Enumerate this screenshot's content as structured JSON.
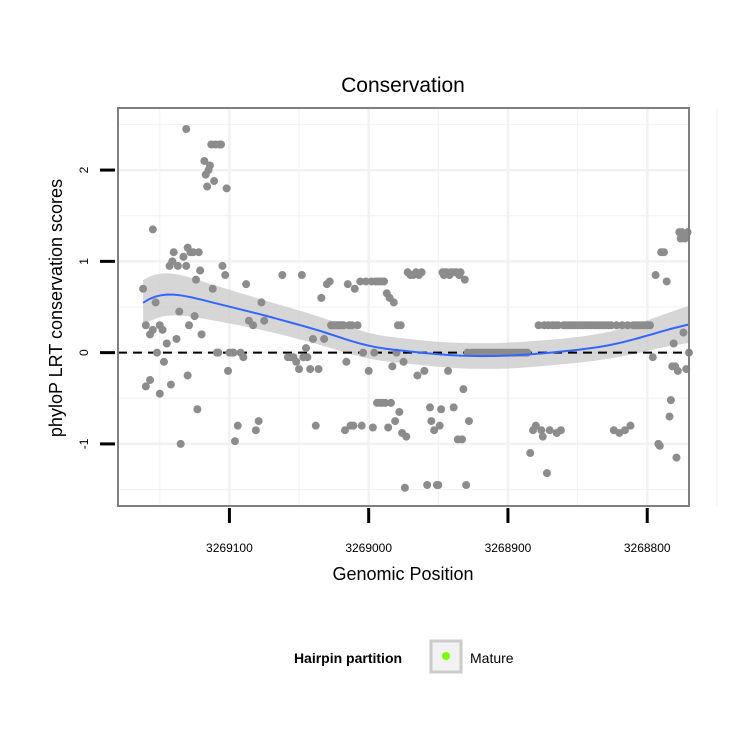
{
  "chart_data": {
    "type": "scatter",
    "title": "Conservation",
    "xlabel": "Genomic Position",
    "ylabel": "phyloP LRT conservation scores",
    "x_reversed": true,
    "xlim": [
      3269180,
      3268770
    ],
    "ylim": [
      -1.68,
      2.68
    ],
    "x_ticks": [
      3269100,
      3269000,
      3268900,
      3268800
    ],
    "x_tick_labels": [
      "3269100",
      "3269000",
      "3268900",
      "3268800"
    ],
    "y_ticks": [
      -1,
      0,
      1,
      2
    ],
    "y_tick_labels": [
      "-1",
      "0",
      "1",
      "2"
    ],
    "grid": true,
    "reference_line": {
      "y": 0,
      "style": "dashed"
    },
    "legend": {
      "title": "Hairpin partition",
      "position": "bottom",
      "entries": [
        {
          "label": "Mature",
          "color": "#7cfc00"
        }
      ]
    },
    "colors": {
      "points": "#8c8c8c",
      "mature": "#7cfc00",
      "smooth": "#3366ff",
      "band": "#c8c8c8",
      "panel_border": "#7f7f7f",
      "grid": "#f2f2f2"
    },
    "series": [
      {
        "values": [
          [
            3269162,
            0.7
          ],
          [
            3269160,
            0.3
          ],
          [
            3269160,
            -0.37
          ],
          [
            3269157,
            0.2
          ],
          [
            3269157,
            -0.3
          ],
          [
            3269155,
            0.25
          ],
          [
            3269155,
            1.35
          ],
          [
            3269153,
            0.55
          ],
          [
            3269152,
            0.0
          ],
          [
            3269150,
            -0.45
          ],
          [
            3269150,
            0.3
          ],
          [
            3269148,
            0.25
          ],
          [
            3269147,
            -0.1
          ],
          [
            3269145,
            0.1
          ],
          [
            3269143,
            0.95
          ],
          [
            3269142,
            -0.35
          ],
          [
            3269141,
            1.0
          ],
          [
            3269140,
            1.1
          ],
          [
            3269138,
            0.15
          ],
          [
            3269137,
            0.95
          ],
          [
            3269136,
            0.45
          ],
          [
            3269135,
            -1.0
          ],
          [
            3269133,
            1.05
          ],
          [
            3269131,
            2.45
          ],
          [
            3269131,
            0.95
          ],
          [
            3269130,
            1.15
          ],
          [
            3269130,
            -0.25
          ],
          [
            3269129,
            0.3
          ],
          [
            3269128,
            1.1
          ],
          [
            3269126,
            1.1
          ],
          [
            3269125,
            0.4
          ],
          [
            3269124,
            0.8
          ],
          [
            3269123,
            -0.62
          ],
          [
            3269122,
            1.1
          ],
          [
            3269121,
            0.9
          ],
          [
            3269120,
            0.2
          ],
          [
            3269118,
            2.1
          ],
          [
            3269117,
            1.95
          ],
          [
            3269116,
            1.82
          ],
          [
            3269115,
            2.0
          ],
          [
            3269114,
            2.05
          ],
          [
            3269113,
            2.28
          ],
          [
            3269112,
            0.7
          ],
          [
            3269111,
            1.88
          ],
          [
            3269110,
            2.28
          ],
          [
            3269109,
            0.0
          ],
          [
            3269108,
            0.0
          ],
          [
            3269107,
            2.28
          ],
          [
            3269106,
            2.28
          ],
          [
            3269105,
            0.95
          ],
          [
            3269103,
            0.85
          ],
          [
            3269102,
            1.8
          ],
          [
            3269101,
            -0.2
          ],
          [
            3269100,
            0.0
          ],
          [
            3269098,
            0.0
          ],
          [
            3269097,
            0.0
          ],
          [
            3269096,
            -0.97
          ],
          [
            3269094,
            -0.8
          ],
          [
            3269092,
            0.0
          ],
          [
            3269090,
            -0.05
          ],
          [
            3269088,
            0.75
          ],
          [
            3269086,
            0.35
          ],
          [
            3269083,
            0.3
          ],
          [
            3269081,
            -0.85
          ],
          [
            3269079,
            -0.75
          ],
          [
            3269077,
            0.55
          ],
          [
            3269075,
            0.35
          ],
          [
            3269062,
            0.85
          ],
          [
            3269058,
            -0.05
          ],
          [
            3269056,
            -0.05
          ],
          [
            3269054,
            -0.05
          ],
          [
            3269052,
            -0.1
          ],
          [
            3269050,
            -0.18
          ],
          [
            3269048,
            0.85
          ],
          [
            3269047,
            -0.05
          ],
          [
            3269045,
            0.05
          ],
          [
            3269044,
            -0.05
          ],
          [
            3269042,
            -0.18
          ],
          [
            3269040,
            0.15
          ],
          [
            3269038,
            -0.8
          ],
          [
            3269036,
            -0.18
          ],
          [
            3269034,
            0.6
          ],
          [
            3269032,
            0.15
          ],
          [
            3269030,
            0.75
          ],
          [
            3269028,
            0.78
          ],
          [
            3269027,
            0.3
          ],
          [
            3269026,
            0.3
          ],
          [
            3269025,
            0.3
          ],
          [
            3269024,
            0.3
          ],
          [
            3269023,
            0.3
          ],
          [
            3269022,
            0.3
          ],
          [
            3269021,
            0.3
          ],
          [
            3269020,
            0.3
          ],
          [
            3269019,
            0.3
          ],
          [
            3269018,
            0.3
          ],
          [
            3269017,
            -0.85
          ],
          [
            3269016,
            -0.1
          ],
          [
            3269015,
            0.75
          ],
          [
            3269014,
            0.3
          ],
          [
            3269013,
            -0.8
          ],
          [
            3269012,
            0.3
          ],
          [
            3269011,
            -0.8
          ],
          [
            3269010,
            0.7
          ],
          [
            3269008,
            0.3
          ],
          [
            3269006,
            0.78
          ],
          [
            3269005,
            -0.8
          ],
          [
            3269004,
            0.0
          ],
          [
            3269002,
            0.78
          ],
          [
            3269000,
            -0.2
          ],
          [
            3268998,
            0.78
          ],
          [
            3268997,
            -0.82
          ],
          [
            3268996,
            0.0
          ],
          [
            3268995,
            0.78
          ],
          [
            3268994,
            -0.55
          ],
          [
            3268993,
            0.78
          ],
          [
            3268992,
            -0.55
          ],
          [
            3268991,
            0.78
          ],
          [
            3268990,
            -0.55
          ],
          [
            3268989,
            0.78
          ],
          [
            3268988,
            -0.55
          ],
          [
            3268987,
            0.65
          ],
          [
            3268986,
            -0.82
          ],
          [
            3268985,
            0.6
          ],
          [
            3268984,
            -0.55
          ],
          [
            3268983,
            -0.15
          ],
          [
            3268982,
            0.55
          ],
          [
            3268981,
            -0.75
          ],
          [
            3268980,
            0.0
          ],
          [
            3268979,
            0.3
          ],
          [
            3268978,
            -0.65
          ],
          [
            3268977,
            0.3
          ],
          [
            3268976,
            -0.88
          ],
          [
            3268975,
            -0.1
          ],
          [
            3268974,
            -1.48
          ],
          [
            3268973,
            -0.92
          ],
          [
            3268972,
            0.88
          ],
          [
            3268970,
            0.85
          ],
          [
            3268968,
            0.85
          ],
          [
            3268966,
            0.88
          ],
          [
            3268965,
            -0.25
          ],
          [
            3268964,
            0.85
          ],
          [
            3268962,
            0.88
          ],
          [
            3268960,
            -0.2
          ],
          [
            3268958,
            -1.45
          ],
          [
            3268956,
            -0.6
          ],
          [
            3268955,
            -0.75
          ],
          [
            3268953,
            -0.85
          ],
          [
            3268951,
            -1.45
          ],
          [
            3268950,
            -1.45
          ],
          [
            3268949,
            -0.8
          ],
          [
            3268948,
            -0.62
          ],
          [
            3268947,
            0.88
          ],
          [
            3268946,
            0.85
          ],
          [
            3268945,
            0.88
          ],
          [
            3268944,
            0.88
          ],
          [
            3268943,
            -0.2
          ],
          [
            3268942,
            0.85
          ],
          [
            3268941,
            0.88
          ],
          [
            3268940,
            0.88
          ],
          [
            3268939,
            -0.6
          ],
          [
            3268938,
            0.88
          ],
          [
            3268937,
            0.88
          ],
          [
            3268936,
            -0.95
          ],
          [
            3268935,
            0.85
          ],
          [
            3268934,
            0.88
          ],
          [
            3268933,
            -0.95
          ],
          [
            3268932,
            -0.4
          ],
          [
            3268931,
            0.8
          ],
          [
            3268930,
            -1.45
          ],
          [
            3268929,
            0.0
          ],
          [
            3268928,
            -0.75
          ],
          [
            3268926,
            0.0
          ],
          [
            3268924,
            0.0
          ],
          [
            3268922,
            0.0
          ],
          [
            3268920,
            0.0
          ],
          [
            3268918,
            0.0
          ],
          [
            3268916,
            0.0
          ],
          [
            3268914,
            0.0
          ],
          [
            3268912,
            0.0
          ],
          [
            3268910,
            0.0
          ],
          [
            3268908,
            0.0
          ],
          [
            3268906,
            0.0
          ],
          [
            3268904,
            0.0
          ],
          [
            3268902,
            0.0
          ],
          [
            3268900,
            0.0
          ],
          [
            3268898,
            0.0
          ],
          [
            3268896,
            0.0
          ],
          [
            3268894,
            0.0
          ],
          [
            3268892,
            0.0
          ],
          [
            3268890,
            0.0
          ],
          [
            3268888,
            0.0
          ],
          [
            3268886,
            0.0
          ],
          [
            3268884,
            -1.1
          ],
          [
            3268882,
            -0.85
          ],
          [
            3268880,
            -0.8
          ],
          [
            3268878,
            0.3
          ],
          [
            3268876,
            -0.85
          ],
          [
            3268875,
            -0.92
          ],
          [
            3268874,
            0.3
          ],
          [
            3268872,
            -1.32
          ],
          [
            3268871,
            0.3
          ],
          [
            3268870,
            -0.85
          ],
          [
            3268868,
            0.3
          ],
          [
            3268866,
            0.3
          ],
          [
            3268865,
            -0.88
          ],
          [
            3268864,
            0.3
          ],
          [
            3268862,
            -0.85
          ],
          [
            3268860,
            0.3
          ],
          [
            3268858,
            0.3
          ],
          [
            3268856,
            0.3
          ],
          [
            3268854,
            0.3
          ],
          [
            3268852,
            0.3
          ],
          [
            3268850,
            0.3
          ],
          [
            3268848,
            0.3
          ],
          [
            3268846,
            0.3
          ],
          [
            3268844,
            0.3
          ],
          [
            3268842,
            0.3
          ],
          [
            3268840,
            0.3
          ],
          [
            3268838,
            0.3
          ],
          [
            3268836,
            0.3
          ],
          [
            3268834,
            0.3
          ],
          [
            3268832,
            0.3
          ],
          [
            3268830,
            0.3
          ],
          [
            3268828,
            0.3
          ],
          [
            3268826,
            0.3
          ],
          [
            3268824,
            -0.85
          ],
          [
            3268822,
            0.3
          ],
          [
            3268820,
            -0.88
          ],
          [
            3268818,
            0.3
          ],
          [
            3268816,
            -0.85
          ],
          [
            3268814,
            0.3
          ],
          [
            3268812,
            -0.8
          ],
          [
            3268810,
            0.3
          ],
          [
            3268808,
            0.3
          ],
          [
            3268806,
            0.3
          ],
          [
            3268804,
            0.3
          ],
          [
            3268802,
            0.3
          ],
          [
            3268800,
            0.3
          ],
          [
            3268798,
            0.3
          ],
          [
            3268796,
            -0.05
          ],
          [
            3268794,
            0.85
          ],
          [
            3268792,
            -1.0
          ],
          [
            3268791,
            -1.02
          ],
          [
            3268790,
            1.1
          ],
          [
            3268788,
            1.1
          ],
          [
            3268786,
            0.78
          ],
          [
            3268784,
            -0.7
          ],
          [
            3268783,
            -0.52
          ],
          [
            3268782,
            -0.15
          ],
          [
            3268781,
            0.1
          ],
          [
            3268780,
            -0.15
          ],
          [
            3268779,
            -1.15
          ],
          [
            3268778,
            -0.2
          ],
          [
            3268777,
            1.32
          ],
          [
            3268776,
            1.25
          ],
          [
            3268775,
            1.32
          ],
          [
            3268774,
            0.22
          ],
          [
            3268773,
            1.25
          ],
          [
            3268772,
            -0.18
          ],
          [
            3268771,
            1.32
          ],
          [
            3268770,
            0.0
          ]
        ]
      }
    ]
  }
}
